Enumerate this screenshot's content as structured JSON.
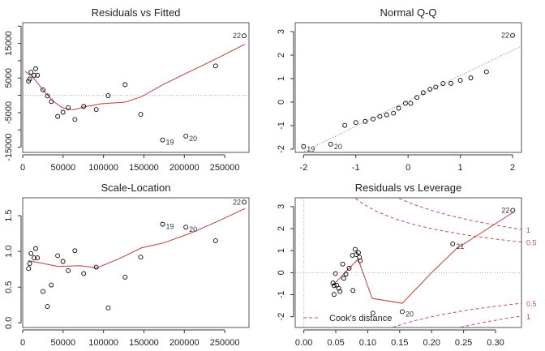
{
  "chart_data": [
    {
      "type": "scatter",
      "title": "Residuals vs Fitted",
      "xlabel": "",
      "ylabel": "",
      "xlim": [
        0,
        280000
      ],
      "ylim": [
        -16500,
        21000
      ],
      "xticks": [
        0,
        50000,
        100000,
        150000,
        200000,
        250000
      ],
      "xtick_labels": [
        "0",
        "50000",
        "100000",
        "150000",
        "200000",
        "250000"
      ],
      "yticks": [
        -15000,
        -10000,
        -5000,
        0,
        5000,
        10000,
        15000,
        20000
      ],
      "ytick_labels": [
        "-15000",
        "",
        "-5000",
        "",
        "5000",
        "",
        "15000",
        ""
      ],
      "hline": 0,
      "x": [
        7200,
        8600,
        10300,
        14100,
        16100,
        18200,
        25100,
        30600,
        35400,
        43300,
        49800,
        56300,
        64600,
        75500,
        91000,
        105800,
        126700,
        146000,
        173100,
        201900,
        238700,
        274000
      ],
      "y": [
        4100,
        4700,
        6700,
        5800,
        7700,
        5800,
        1600,
        -200,
        -1800,
        -6100,
        -4900,
        -3600,
        -7000,
        -3200,
        -4100,
        -100,
        3100,
        -5500,
        -12900,
        -11800,
        8500,
        17200
      ],
      "point_labels": {
        "18": "19",
        "19": "20",
        "21": "22"
      },
      "smooth": {
        "x": [
          3100,
          13000,
          25100,
          37100,
          49100,
          62800,
          78300,
          98900,
          126400,
          147000,
          174500,
          208800,
          243100,
          275100
        ],
        "y": [
          6900,
          5100,
          1600,
          -1600,
          -3600,
          -4200,
          -3200,
          -2400,
          -2000,
          -400,
          3200,
          7100,
          11000,
          14800
        ]
      }
    },
    {
      "type": "scatter",
      "title": "Normal Q-Q",
      "xlabel": "",
      "ylabel": "",
      "xlim": [
        -2.16,
        2.17
      ],
      "ylim": [
        -2.14,
        3.38
      ],
      "xticks": [
        -2,
        -1,
        0,
        1,
        2
      ],
      "xtick_labels": [
        "-2",
        "-1",
        "0",
        "1",
        "2"
      ],
      "yticks": [
        -2,
        -1,
        0,
        1,
        2,
        3
      ],
      "ytick_labels": [
        "-2",
        "-1",
        "0",
        "1",
        "2",
        "3"
      ],
      "x": [
        -2.0,
        -1.48,
        -1.21,
        -1.0,
        -0.82,
        -0.67,
        -0.54,
        -0.41,
        -0.28,
        -0.18,
        -0.05,
        0.05,
        0.17,
        0.29,
        0.42,
        0.53,
        0.67,
        0.82,
        1.0,
        1.2,
        1.5,
        2.0
      ],
      "y": [
        -1.89,
        -1.79,
        -0.99,
        -0.87,
        -0.82,
        -0.72,
        -0.61,
        -0.54,
        -0.47,
        -0.26,
        -0.05,
        -0.05,
        0.2,
        0.4,
        0.55,
        0.64,
        0.79,
        0.8,
        0.93,
        1.03,
        1.29,
        2.84
      ],
      "point_labels": {
        "0": "19",
        "1": "20",
        "21": "22"
      },
      "reference_line": {
        "intercept": 0.05,
        "slope": 1.08
      }
    },
    {
      "type": "scatter",
      "title": "Scale-Location",
      "xlabel": "",
      "ylabel": "",
      "xlim": [
        0,
        280000
      ],
      "ylim": [
        -0.064,
        1.75
      ],
      "xticks": [
        0,
        50000,
        100000,
        150000,
        200000,
        250000
      ],
      "xtick_labels": [
        "0",
        "50000",
        "100000",
        "150000",
        "200000",
        "250000"
      ],
      "yticks": [
        0,
        0.5,
        1.0,
        1.5
      ],
      "ytick_labels": [
        "0.0",
        "0.5",
        "1.0",
        "1.5"
      ],
      "x": [
        7200,
        8600,
        10300,
        14100,
        16100,
        18200,
        25100,
        30600,
        35400,
        43300,
        49800,
        56300,
        64600,
        75500,
        91000,
        105800,
        126700,
        146000,
        173100,
        201900,
        238700,
        274000
      ],
      "y": [
        0.76,
        0.83,
        0.97,
        0.91,
        1.04,
        0.91,
        0.44,
        0.23,
        0.53,
        0.94,
        0.86,
        0.73,
        1.01,
        0.69,
        0.78,
        0.21,
        0.64,
        0.92,
        1.38,
        1.34,
        1.15,
        1.69
      ],
      "point_labels": {
        "18": "19",
        "19": "20",
        "21": "22"
      },
      "smooth": {
        "x": [
          7200,
          44000,
          71400,
          92000,
          119500,
          147000,
          174500,
          208800,
          243100,
          275100
        ],
        "y": [
          0.87,
          0.79,
          0.8,
          0.77,
          0.9,
          1.05,
          1.12,
          1.26,
          1.43,
          1.6
        ]
      }
    },
    {
      "type": "scatter",
      "title": "Residuals vs Leverage",
      "xlabel": "",
      "ylabel": "",
      "xlim": [
        -0.0135,
        0.3406
      ],
      "ylim": [
        -2.49,
        3.4
      ],
      "xticks": [
        0,
        0.05,
        0.1,
        0.15,
        0.2,
        0.25,
        0.3
      ],
      "xtick_labels": [
        "0.00",
        "0.05",
        "0.10",
        "0.15",
        "0.20",
        "0.25",
        "0.30"
      ],
      "yticks": [
        -2,
        -1,
        0,
        1,
        2,
        3
      ],
      "ytick_labels": [
        "-2",
        "-1",
        "0",
        "1",
        "2",
        "3"
      ],
      "hline": 0,
      "vline": 0,
      "x": [
        0.0456,
        0.0473,
        0.0494,
        0.0473,
        0.0515,
        0.0545,
        0.0566,
        0.0608,
        0.0625,
        0.0659,
        0.071,
        0.0769,
        0.0761,
        0.0803,
        0.082,
        0.0854,
        0.087,
        0.0883,
        0.108,
        0.154,
        0.233,
        0.327
      ],
      "y": [
        -0.47,
        -0.59,
        -0.04,
        -0.99,
        -0.57,
        -0.71,
        -0.86,
        0.39,
        -0.26,
        -0.07,
        0.2,
        -0.81,
        0.79,
        1.06,
        0.82,
        0.91,
        0.7,
        0.54,
        -1.84,
        -1.77,
        1.31,
        2.83
      ],
      "point_labels": {
        "19": "20",
        "20": "21",
        "21": "22"
      },
      "smooth": {
        "x": [
          0.046,
          0.071,
          0.085,
          0.107,
          0.154,
          0.2,
          0.238,
          0.327
        ],
        "y": [
          -0.57,
          0.21,
          0.61,
          -1.17,
          -1.39,
          0,
          1.07,
          2.73
        ]
      },
      "cooks_distance": {
        "levels": [
          0.5,
          1
        ],
        "level_labels": [
          "0.5",
          "1"
        ],
        "n_params": 2
      },
      "legend": {
        "label": "Cook's distance",
        "position": "bottom-left"
      }
    }
  ],
  "colors": {
    "points": "#000000",
    "smooth": "#c0504d",
    "reference": "#999999",
    "axis": "#333333"
  }
}
